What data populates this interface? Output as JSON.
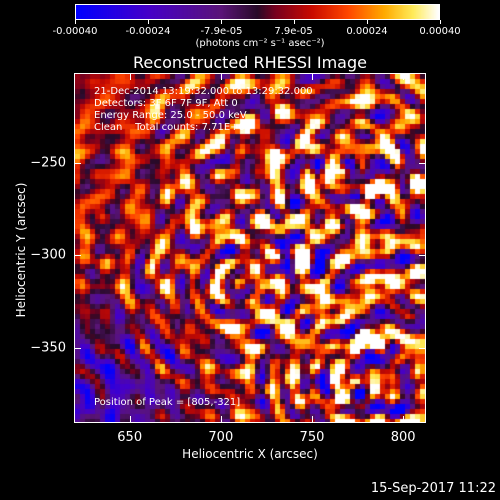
{
  "chart_data": {
    "type": "heatmap",
    "title": "Reconstructed RHESSI Image",
    "xlabel": "Heliocentric X (arcsec)",
    "ylabel": "Heliocentric Y (arcsec)",
    "xlim": [
      620,
      812
    ],
    "ylim": [
      -390,
      -202
    ],
    "x_ticks": [
      "650",
      "700",
      "750",
      "800"
    ],
    "x_tick_values": [
      650,
      700,
      750,
      800
    ],
    "y_ticks": [
      "-250",
      "-300",
      "-350"
    ],
    "y_tick_values": [
      -250,
      -300,
      -350
    ],
    "colorbar": {
      "ticks": [
        "-0.00040",
        "-0.00024",
        "-7.9e-05",
        "7.9e-05",
        "0.00024",
        "0.00040"
      ],
      "tick_values": [
        -0.0004,
        -0.00024,
        -7.9e-05,
        7.9e-05,
        0.00024,
        0.0004
      ],
      "units": "(photons cm⁻² s⁻¹ asec⁻²)",
      "range": [
        -0.0004,
        0.0004
      ]
    },
    "peak": [
      805,
      -321
    ],
    "grid": false
  },
  "annotations": {
    "time_range": "21-Dec-2014 13:19:32.000 to 13:29:32.000",
    "detectors": "Detectors: 3F 6F 7F 9F, Att 0",
    "energy": "Energy Range: 25.0 - 50.0 keV",
    "clean": "Clean    Total counts: 7.71E+03",
    "peak_position": "Position of Peak = [805,-321]"
  },
  "footer": {
    "date": "15-Sep-2017 11:22"
  }
}
